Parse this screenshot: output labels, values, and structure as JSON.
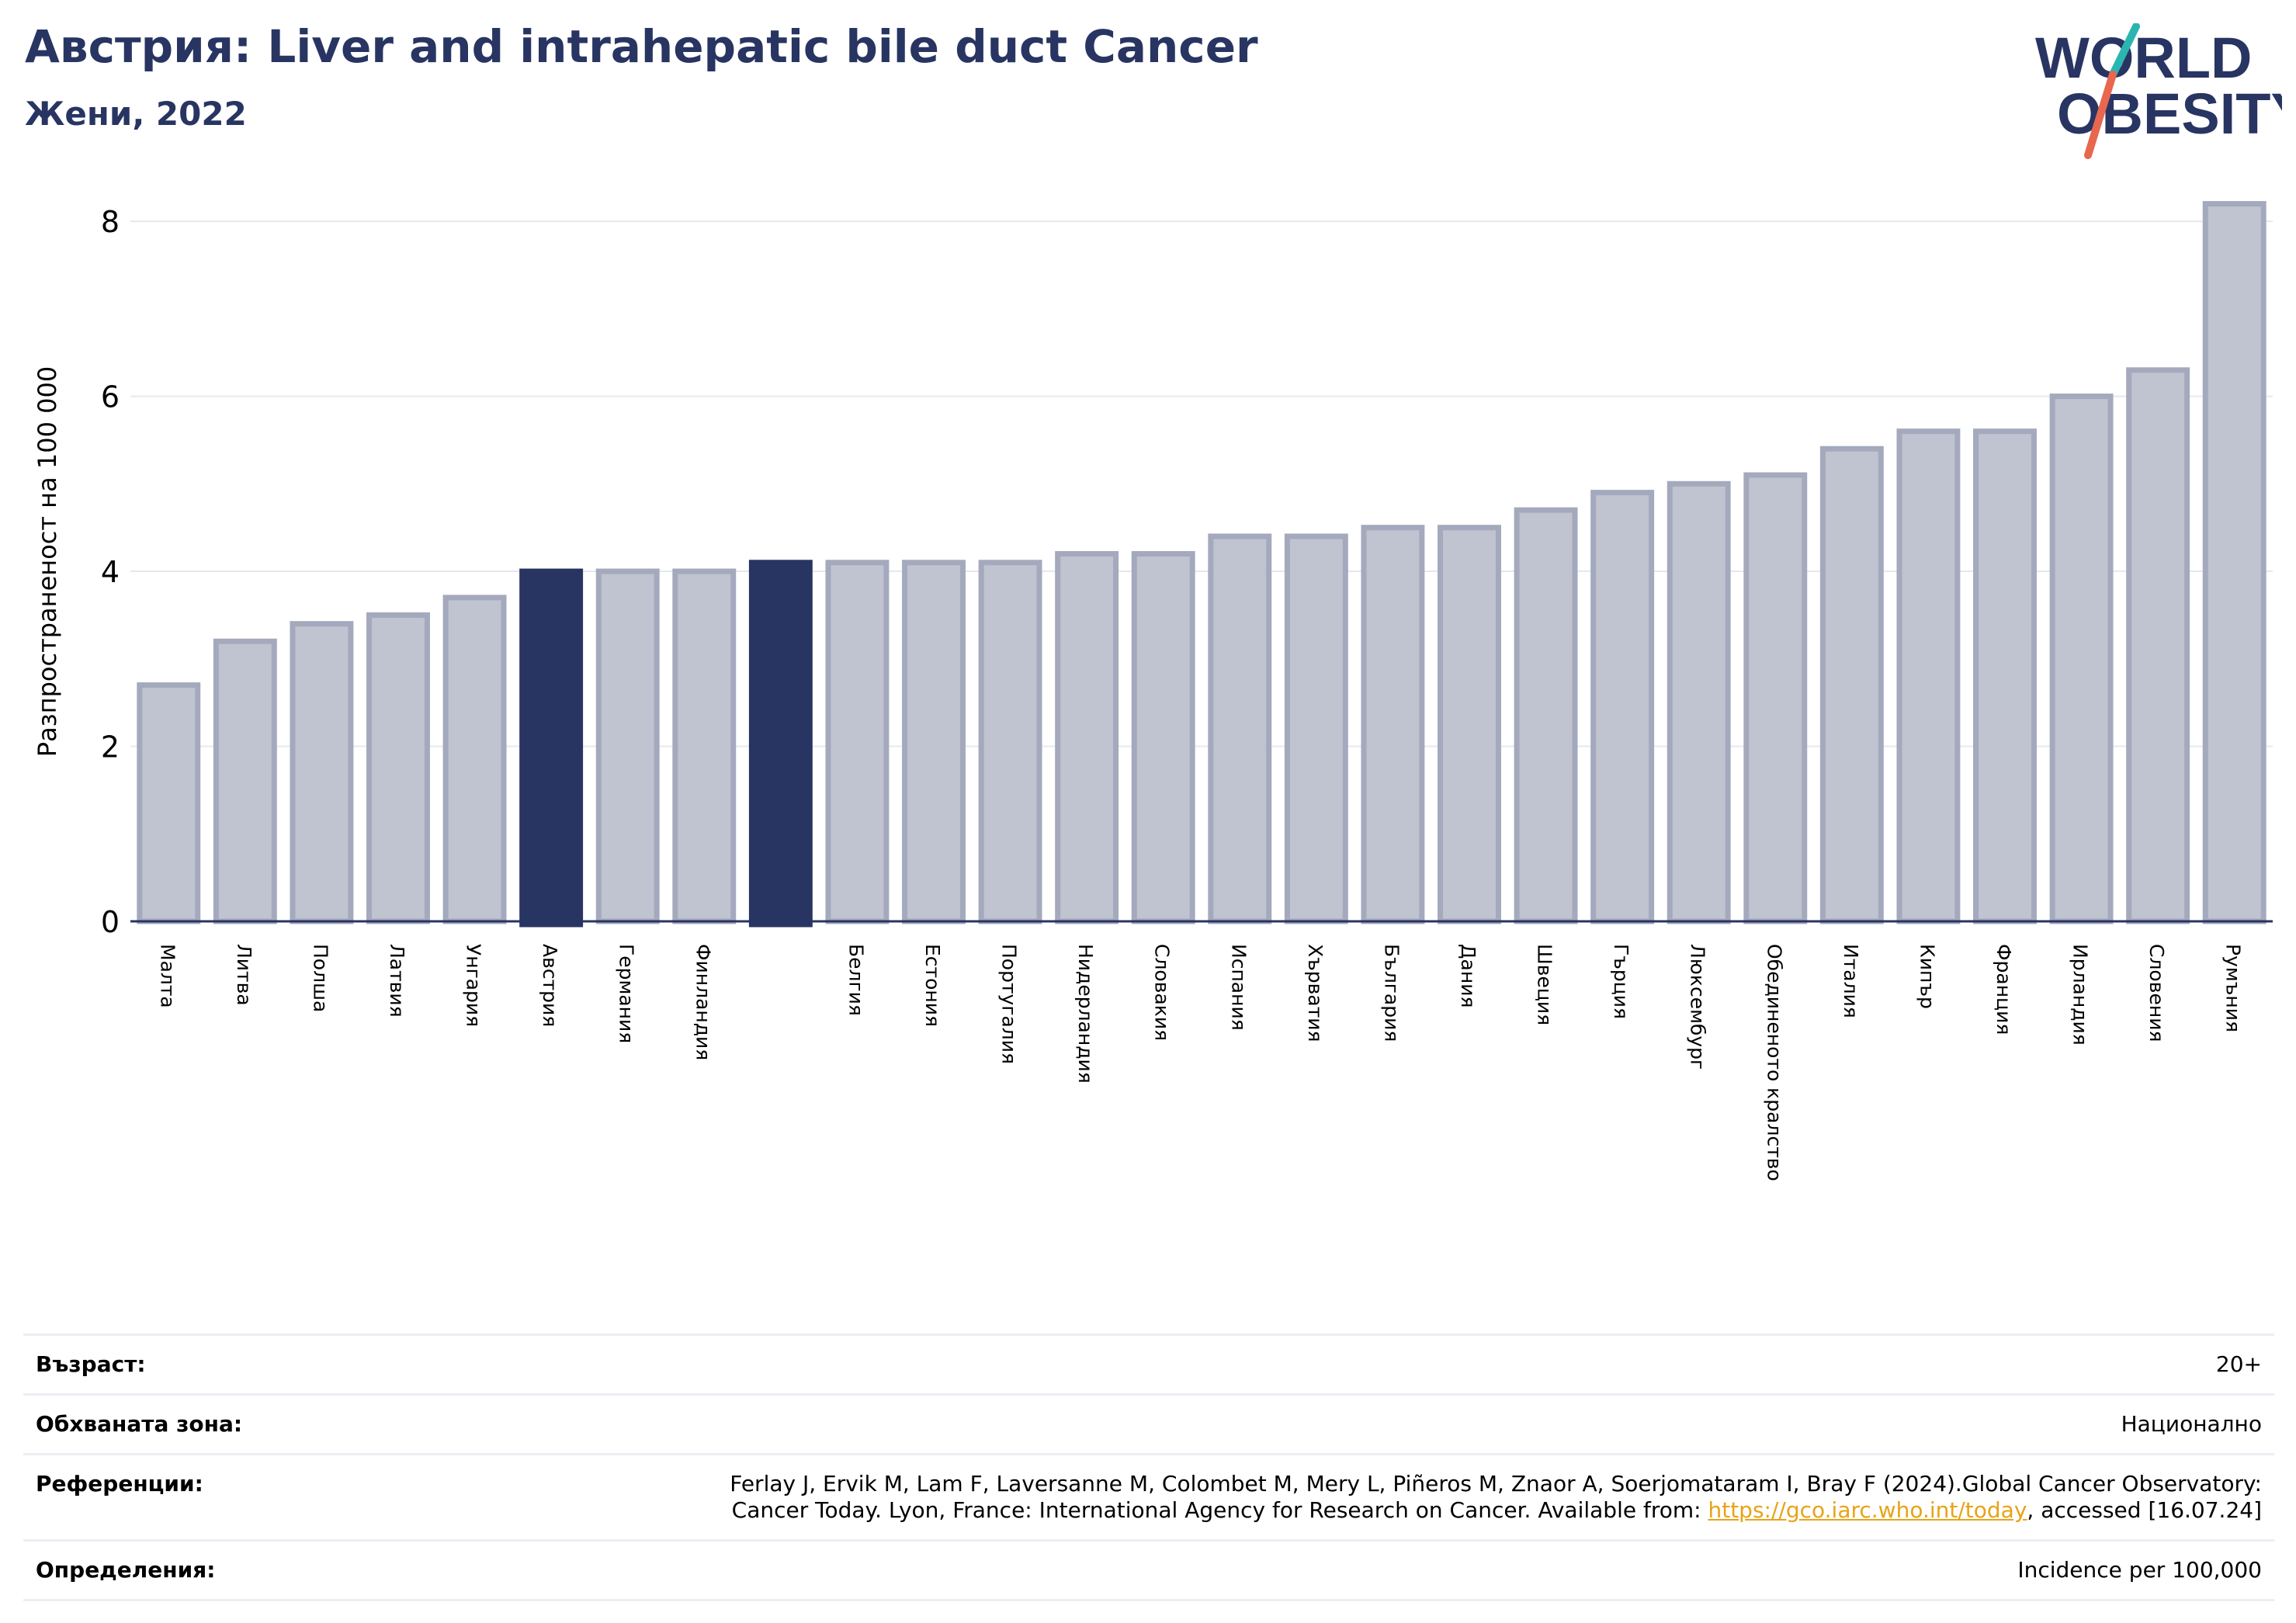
{
  "header": {
    "title": "Австрия: Liver and intrahepatic bile duct Cancer",
    "subtitle": "Жени, 2022"
  },
  "logo": {
    "line1": "WORLD",
    "line2": "OBESITY",
    "text_color": "#283562",
    "slash_color_top": "#2bb5b0",
    "slash_color_bottom": "#e8674e"
  },
  "chart_data": {
    "type": "bar",
    "ylabel": "Разпространеност  на 100 000",
    "ylim": [
      0,
      8.4
    ],
    "yticks": [
      0,
      2,
      4,
      6,
      8
    ],
    "grid": true,
    "categories": [
      "Малта",
      "Литва",
      "Полша",
      "Латвия",
      "Унгария",
      "Австрия",
      "Германия",
      "Финландия",
      "",
      "Белгия",
      "Естония",
      "Португалия",
      "Нидерландия",
      "Словакия",
      "Испания",
      "Хърватия",
      "България",
      "Дания",
      "Швеция",
      "Гърция",
      "Люксембург",
      "Обединеното кралство",
      "Италия",
      "Кипър",
      "Франция",
      "Ирландия",
      "Словения",
      "Румъния"
    ],
    "values": [
      2.7,
      3.2,
      3.4,
      3.5,
      3.7,
      4.0,
      4.0,
      4.0,
      4.1,
      4.1,
      4.1,
      4.1,
      4.2,
      4.2,
      4.4,
      4.4,
      4.5,
      4.5,
      4.7,
      4.9,
      5.0,
      5.1,
      5.4,
      5.6,
      5.6,
      6.0,
      6.3,
      8.2
    ],
    "highlighted_indices": [
      5,
      8
    ],
    "colors": {
      "bar_fill": "#c0c3d0",
      "bar_stroke": "#a4a9bd",
      "highlight_fill": "#283562",
      "grid": "#e6e8ee",
      "axis": "#283562"
    }
  },
  "info": {
    "rows": [
      {
        "label": "Възраст:",
        "value": "20+"
      },
      {
        "label": "Обхваната зона:",
        "value": "Национално"
      },
      {
        "label": "Референции:",
        "value_line1": "Ferlay J, Ervik M, Lam F, Laversanne M, Colombet M, Mery L, Piñeros M, Znaor A, Soerjomataram I, Bray F (2024).Global Cancer Observatory:",
        "value_pre": "Cancer Today. Lyon, France: International Agency for Research on Cancer. Available from: ",
        "link": "https://gco.iarc.who.int/today",
        "value_post": ", accessed [16.07.24]"
      },
      {
        "label": "Определения:",
        "value": "Incidence per 100,000"
      }
    ]
  }
}
